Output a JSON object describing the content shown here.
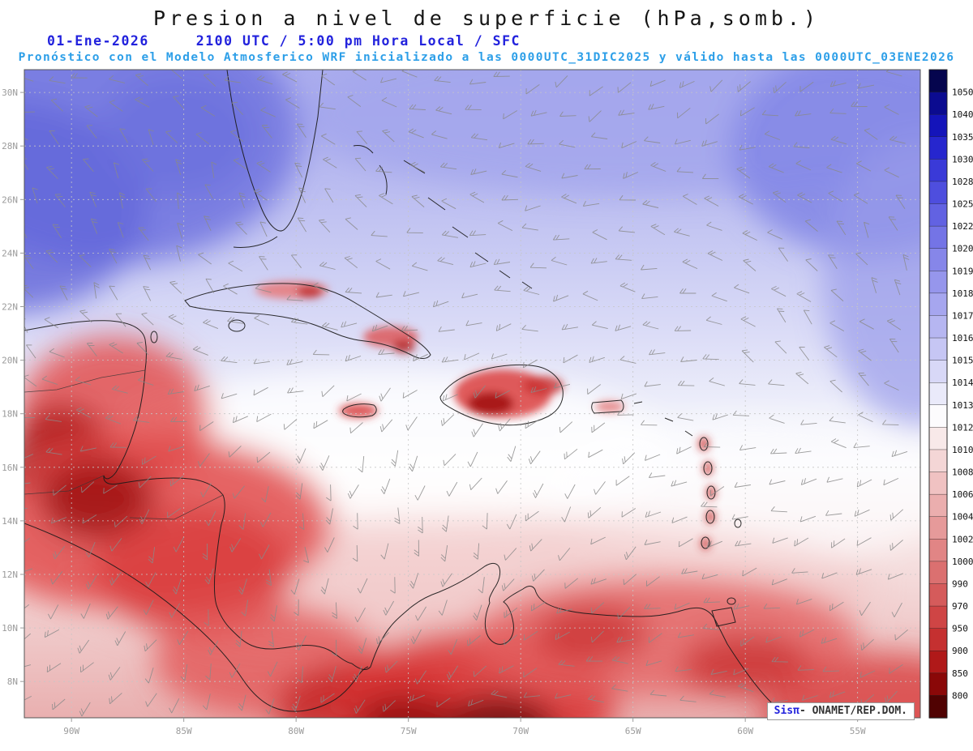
{
  "title": "Presion a nivel de superficie (hPa,somb.)",
  "header": {
    "date": "01-Ene-2026",
    "time": "2100 UTC / 5:00 pm Hora Local / SFC",
    "forecast": "Pronóstico con el Modelo Atmosferico WRF inicializado a las 0000UTC_31DIC2025 y válido hasta las 0000UTC_03ENE2026"
  },
  "map": {
    "lat_labels": [
      "30N",
      "28N",
      "26N",
      "24N",
      "22N",
      "20N",
      "18N",
      "16N",
      "14N",
      "12N",
      "10N",
      "8N"
    ],
    "lon_labels": [
      "90W",
      "85W",
      "80W",
      "75W",
      "70W",
      "65W",
      "60W",
      "55W"
    ]
  },
  "colorbar": {
    "unit": "hPa",
    "tick_values": [
      "1050",
      "1040",
      "1035",
      "1030",
      "1028",
      "1025",
      "1022",
      "1020",
      "1019",
      "1018",
      "1017",
      "1016",
      "1015",
      "1014",
      "1013",
      "1012",
      "1010",
      "1008",
      "1006",
      "1004",
      "1002",
      "1000",
      "990",
      "970",
      "950",
      "900",
      "850",
      "800"
    ],
    "segment_colors": [
      "#05054E",
      "#0B0B90",
      "#1414BA",
      "#2626CE",
      "#3A3AD8",
      "#4E4EDE",
      "#6262E2",
      "#7474E6",
      "#8686E9",
      "#9696EC",
      "#A6A6EF",
      "#B6B6F1",
      "#C6C6F4",
      "#D8D8F7",
      "#EAEAFA",
      "#FCFBFD",
      "#F8E9E9",
      "#F4D6D6",
      "#F0C2C2",
      "#EBAEAE",
      "#E69A9A",
      "#E18585",
      "#DB7070",
      "#D55B5B",
      "#CF4545",
      "#C53030",
      "#B01919",
      "#8A0808",
      "#500202"
    ]
  },
  "credit": {
    "app": "Sisπ",
    "org": "- ONAMET/REP.DOM."
  },
  "accent_colors": {
    "header_blue": "#2222DD",
    "forecast_cyan": "#2D9FE8"
  },
  "chart_data": {
    "type": "heatmap",
    "title": "Presion a nivel de superficie (hPa,somb.)",
    "valid_time": "01-Ene-2026 2100 UTC / 5:00 pm Hora Local / SFC",
    "model_run": "WRF inicializado 0000UTC_31DIC2025, válido hasta 0000UTC_03ENE2026",
    "x_ticks": [
      "90W",
      "85W",
      "80W",
      "75W",
      "70W",
      "65W",
      "60W",
      "55W"
    ],
    "y_ticks": [
      "30N",
      "28N",
      "26N",
      "24N",
      "22N",
      "20N",
      "18N",
      "16N",
      "14N",
      "12N",
      "10N",
      "8N"
    ],
    "colorbar_hpa": [
      1050,
      1040,
      1035,
      1030,
      1028,
      1025,
      1022,
      1020,
      1019,
      1018,
      1017,
      1016,
      1015,
      1014,
      1013,
      1012,
      1010,
      1008,
      1006,
      1004,
      1002,
      1000,
      990,
      970,
      950,
      900,
      850,
      800
    ],
    "pattern": "Presión alta (sombras azules 1016-1028 hPa) al norte sobre el Golfo de México y el Atlántico; banda blanca ~1013-1015 hPa sobre el Caribe central; presión baja (sombras rojas <1012 hPa) sobre Centroamérica, islas y el norte de Suramérica; barbas de viento grises en todo el dominio"
  }
}
